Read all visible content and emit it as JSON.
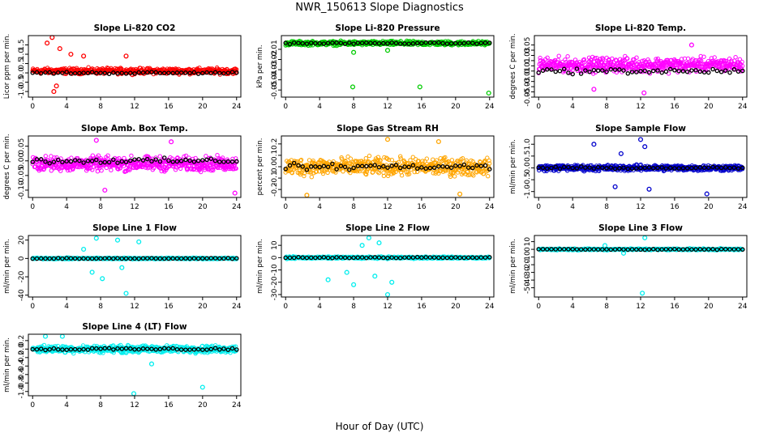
{
  "figure": {
    "title": "NWR_150613  Slope Diagnostics",
    "xlabel": "Hour of Day (UTC)",
    "colors": {
      "reference": "#000000"
    }
  },
  "chart_data": [
    {
      "type": "scatter",
      "title": "Slope Li-820 CO2",
      "ylabel": "Licor ppm per min.",
      "color": "#ff0000",
      "xlim": [
        -0.5,
        24.5
      ],
      "ylim": [
        -1.3,
        2.0
      ],
      "xticks": [
        0,
        4,
        8,
        12,
        16,
        20,
        24
      ],
      "yticks": [
        -1.0,
        -0.5,
        0.0,
        0.5,
        1.0,
        1.5
      ],
      "ytick_labels": [
        "-1.0",
        "-0.5",
        "0.0",
        "0.5",
        "1.0",
        "1.5"
      ],
      "band": {
        "center": 0.1,
        "spread": 0.22
      },
      "outliers": [
        [
          1.7,
          1.6
        ],
        [
          2.3,
          1.9
        ],
        [
          2.5,
          -1.0
        ],
        [
          3.2,
          1.3
        ],
        [
          4.5,
          1.0
        ],
        [
          6.0,
          0.9
        ],
        [
          2.8,
          -0.7
        ],
        [
          11.0,
          0.9
        ]
      ],
      "reference_line": 0.0
    },
    {
      "type": "scatter",
      "title": "Slope Li-820 Pressure",
      "ylabel": "kPa per min.",
      "color": "#00cc00",
      "xlim": [
        -0.5,
        24.5
      ],
      "ylim": [
        -0.057,
        0.0035
      ],
      "xticks": [
        0,
        4,
        8,
        12,
        16,
        20,
        24
      ],
      "yticks": [
        -0.05,
        -0.04,
        -0.03,
        -0.02,
        -0.01
      ],
      "ytick_labels": [
        "-0.05",
        "-0.04",
        "-0.03",
        "-0.02",
        "-0.01"
      ],
      "band": {
        "center": -0.004,
        "spread": 0.003
      },
      "outliers": [
        [
          7.9,
          -0.047
        ],
        [
          15.8,
          -0.047
        ],
        [
          23.9,
          -0.053
        ],
        [
          8.0,
          -0.013
        ],
        [
          12.0,
          -0.011
        ]
      ],
      "reference_line": -0.004
    },
    {
      "type": "scatter",
      "title": "Slope Li-820 Temp.",
      "ylabel": "degrees C per min.",
      "color": "#ff00ff",
      "xlim": [
        -0.5,
        24.5
      ],
      "ylim": [
        -0.05,
        0.068
      ],
      "xticks": [
        0,
        4,
        8,
        12,
        16,
        20,
        24
      ],
      "yticks": [
        -0.05,
        -0.04,
        -0.03,
        -0.02,
        -0.01,
        0.0,
        0.01,
        0.02,
        0.03,
        0.04,
        0.05
      ],
      "ytick_labels": [
        "-0.05",
        "",
        "-0.03",
        "",
        "-0.01",
        "",
        "0.01",
        "",
        "0.03",
        "",
        "0.05"
      ],
      "band": {
        "center": 0.012,
        "spread": 0.02
      },
      "outliers": [
        [
          12.4,
          -0.042
        ],
        [
          6.5,
          -0.035
        ],
        [
          18.0,
          0.05
        ]
      ],
      "reference_line": 0.0
    },
    {
      "type": "scatter",
      "title": "Slope Amb. Box Temp.",
      "ylabel": "degrees C per min.",
      "color": "#ff00ff",
      "xlim": [
        -0.5,
        24.5
      ],
      "ylim": [
        -0.125,
        0.085
      ],
      "xticks": [
        0,
        4,
        8,
        12,
        16,
        20,
        24
      ],
      "yticks": [
        -0.1,
        -0.05,
        0.0,
        0.05
      ],
      "ytick_labels": [
        "-0.10",
        "-0.05",
        "0.00",
        "0.05"
      ],
      "band": {
        "center": -0.01,
        "spread": 0.035
      },
      "outliers": [
        [
          7.5,
          0.07
        ],
        [
          23.8,
          -0.11
        ],
        [
          8.5,
          -0.1
        ],
        [
          16.3,
          0.065
        ]
      ],
      "reference_line": 0.0
    },
    {
      "type": "scatter",
      "title": "Slope Gas Stream RH",
      "ylabel": "percent per min.",
      "color": "#ffa500",
      "xlim": [
        -0.5,
        24.5
      ],
      "ylim": [
        -0.27,
        0.27
      ],
      "xticks": [
        0,
        4,
        8,
        12,
        16,
        20,
        24
      ],
      "yticks": [
        -0.2,
        -0.1,
        0.0,
        0.1,
        0.2
      ],
      "ytick_labels": [
        "-0.2",
        "-0.1",
        "0.0",
        "0.1",
        "0.2"
      ],
      "band": {
        "center": 0.0,
        "spread": 0.11
      },
      "outliers": [
        [
          2.5,
          -0.25
        ],
        [
          12.0,
          0.24
        ],
        [
          18.0,
          0.22
        ],
        [
          20.5,
          -0.24
        ]
      ],
      "reference_line": 0.0
    },
    {
      "type": "scatter",
      "title": "Slope Sample Flow",
      "ylabel": "ml/min per min.",
      "color": "#0000cc",
      "xlim": [
        -0.5,
        24.5
      ],
      "ylim": [
        -1.25,
        1.35
      ],
      "xticks": [
        0,
        4,
        8,
        12,
        16,
        20,
        24
      ],
      "yticks": [
        -1.0,
        -0.5,
        0.0,
        0.5,
        1.0
      ],
      "ytick_labels": [
        "-1.0",
        "-0.5",
        "0.0",
        "0.5",
        "1.0"
      ],
      "band": {
        "center": 0.0,
        "spread": 0.18
      },
      "outliers": [
        [
          6.5,
          1.0
        ],
        [
          12.0,
          1.2
        ],
        [
          12.5,
          0.9
        ],
        [
          19.8,
          -1.1
        ],
        [
          9.0,
          -0.8
        ],
        [
          13.0,
          -0.9
        ],
        [
          9.7,
          0.6
        ]
      ],
      "reference_line": 0.0
    },
    {
      "type": "scatter",
      "title": "Slope Line 1 Flow",
      "ylabel": "ml/min per min.",
      "color": "#00eeee",
      "xlim": [
        -0.5,
        24.5
      ],
      "ylim": [
        -42,
        25
      ],
      "xticks": [
        0,
        4,
        8,
        12,
        16,
        20,
        24
      ],
      "yticks": [
        -40,
        -20,
        0,
        20
      ],
      "ytick_labels": [
        "-40",
        "-20",
        "0",
        "20"
      ],
      "band": {
        "center": 0,
        "spread": 1.2
      },
      "outliers": [
        [
          7.5,
          22
        ],
        [
          10.0,
          20
        ],
        [
          7.0,
          -15
        ],
        [
          8.2,
          -22
        ],
        [
          11.0,
          -38
        ],
        [
          10.5,
          -10
        ],
        [
          12.5,
          18
        ],
        [
          6.0,
          10
        ]
      ],
      "reference_line": 0
    },
    {
      "type": "scatter",
      "title": "Slope Line 2 Flow",
      "ylabel": "ml/min per min.",
      "color": "#00eeee",
      "xlim": [
        -0.5,
        24.5
      ],
      "ylim": [
        -32,
        18
      ],
      "xticks": [
        0,
        4,
        8,
        12,
        16,
        20,
        24
      ],
      "yticks": [
        -30,
        -20,
        -10,
        0,
        10
      ],
      "ytick_labels": [
        "-30",
        "-20",
        "-10",
        "0",
        "10"
      ],
      "band": {
        "center": 0,
        "spread": 1.2
      },
      "outliers": [
        [
          9.8,
          16
        ],
        [
          8.0,
          -22
        ],
        [
          10.5,
          -15
        ],
        [
          12.0,
          -30
        ],
        [
          7.2,
          -12
        ],
        [
          9.0,
          10
        ],
        [
          12.5,
          -20
        ],
        [
          11.0,
          12
        ],
        [
          5.0,
          -18
        ]
      ],
      "reference_line": 0
    },
    {
      "type": "scatter",
      "title": "Slope Line 3 Flow",
      "ylabel": "ml/min per min.",
      "color": "#00eeee",
      "xlim": [
        -0.5,
        24.5
      ],
      "ylim": [
        -62,
        18
      ],
      "xticks": [
        0,
        4,
        8,
        12,
        16,
        20,
        24
      ],
      "yticks": [
        -50,
        -40,
        -30,
        -20,
        -10,
        0,
        10
      ],
      "ytick_labels": [
        "-50",
        "-40",
        "-30",
        "-20",
        "-10",
        "0",
        "10"
      ],
      "band": {
        "center": 0,
        "spread": 1.5
      },
      "outliers": [
        [
          12.2,
          -57
        ],
        [
          12.5,
          15
        ],
        [
          7.8,
          5
        ],
        [
          10.0,
          -5
        ]
      ],
      "reference_line": 0
    },
    {
      "type": "scatter",
      "title": "Slope Line 4 (LT) Flow",
      "ylabel": "ml/min per min.",
      "color": "#00eeee",
      "xlim": [
        -0.5,
        24.5
      ],
      "ylim": [
        -1.1,
        0.35
      ],
      "xticks": [
        0,
        4,
        8,
        12,
        16,
        20,
        24
      ],
      "yticks": [
        -1.0,
        -0.8,
        -0.6,
        -0.4,
        -0.2,
        0.0,
        0.2
      ],
      "ytick_labels": [
        "-1.0",
        "-0.8",
        "-0.6",
        "-0.4",
        "-0.2",
        "0.0",
        "0.2"
      ],
      "band": {
        "center": 0.0,
        "spread": 0.12
      },
      "outliers": [
        [
          11.9,
          -1.05
        ],
        [
          20.0,
          -0.9
        ],
        [
          3.5,
          0.3
        ],
        [
          14.0,
          -0.35
        ],
        [
          1.5,
          0.3
        ]
      ],
      "reference_line": 0.0
    }
  ]
}
